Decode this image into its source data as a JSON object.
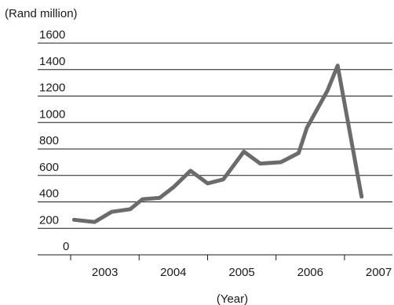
{
  "chart_data": {
    "type": "line",
    "title": "",
    "ylabel": "(Rand million)",
    "xlabel": "(Year)",
    "ylim": [
      0,
      1600
    ],
    "yticks": [
      0,
      200,
      400,
      600,
      800,
      1000,
      1200,
      1400,
      1600
    ],
    "ytick_labels": [
      "0",
      "200",
      "400",
      "600",
      "800",
      "1000",
      "1200",
      "1400",
      "1600"
    ],
    "xlim": [
      2002.55,
      2007.25
    ],
    "year_labels": [
      {
        "year": 2003,
        "label": "2003"
      },
      {
        "year": 2004,
        "label": "2004"
      },
      {
        "year": 2005,
        "label": "2005"
      },
      {
        "year": 2006,
        "label": "2006"
      },
      {
        "year": 2007,
        "label": "2007"
      }
    ],
    "x_tick_positions": [
      2002.55,
      2003.55,
      2004.55,
      2005.55,
      2006.55
    ],
    "grid": "horizontal",
    "line_color": "#6b6b6b",
    "grid_color": "#1a1a1a",
    "series": [
      {
        "points": [
          {
            "x": 2002.6,
            "y": 265
          },
          {
            "x": 2002.9,
            "y": 248
          },
          {
            "x": 2003.15,
            "y": 325
          },
          {
            "x": 2003.42,
            "y": 345
          },
          {
            "x": 2003.6,
            "y": 420
          },
          {
            "x": 2003.85,
            "y": 430
          },
          {
            "x": 2004.05,
            "y": 510
          },
          {
            "x": 2004.3,
            "y": 635
          },
          {
            "x": 2004.55,
            "y": 540
          },
          {
            "x": 2004.78,
            "y": 570
          },
          {
            "x": 2005.08,
            "y": 780
          },
          {
            "x": 2005.32,
            "y": 690
          },
          {
            "x": 2005.62,
            "y": 700
          },
          {
            "x": 2005.88,
            "y": 770
          },
          {
            "x": 2006.0,
            "y": 960
          },
          {
            "x": 2006.3,
            "y": 1240
          },
          {
            "x": 2006.45,
            "y": 1430
          },
          {
            "x": 2006.8,
            "y": 440
          }
        ]
      }
    ]
  }
}
